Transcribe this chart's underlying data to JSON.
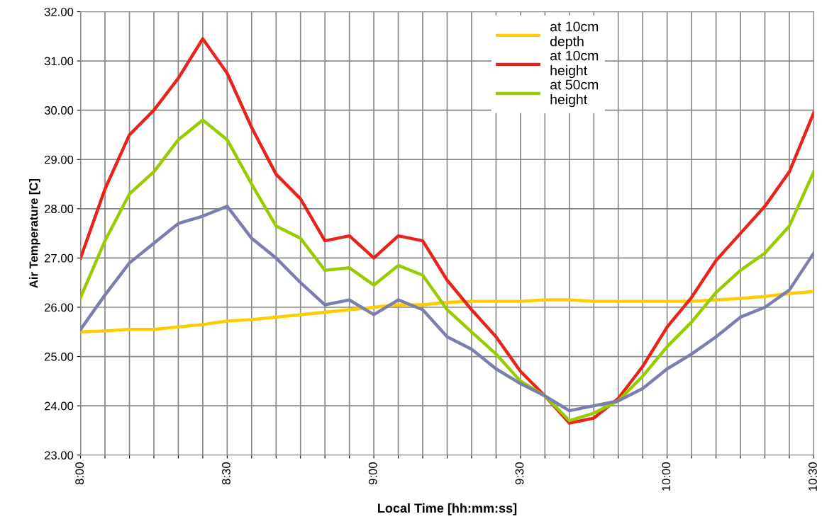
{
  "chart_data": {
    "type": "line",
    "xlabel": "Local Time [hh:mm:ss]",
    "ylabel": "Air Temperature [C]",
    "x": [
      8.0,
      8.0833,
      8.1667,
      8.25,
      8.3333,
      8.4167,
      8.5,
      8.5833,
      8.6667,
      8.75,
      8.8333,
      8.9167,
      9.0,
      9.0833,
      9.1667,
      9.25,
      9.3333,
      9.4167,
      9.5,
      9.5833,
      9.6667,
      9.75,
      9.8333,
      9.9167,
      10.0,
      10.0833,
      10.1667,
      10.25,
      10.3333,
      10.4167,
      10.5
    ],
    "series": [
      {
        "name": "at 10cm depth",
        "color": "#ffcc00",
        "values": [
          25.5,
          25.52,
          25.55,
          25.55,
          25.6,
          25.65,
          25.72,
          25.75,
          25.8,
          25.85,
          25.9,
          25.95,
          26.0,
          26.05,
          26.05,
          26.1,
          26.12,
          26.12,
          26.12,
          26.15,
          26.15,
          26.12,
          26.12,
          26.12,
          26.12,
          26.12,
          26.15,
          26.18,
          26.22,
          26.28,
          26.32
        ]
      },
      {
        "name": "at 10cm height",
        "color": "#e8231a",
        "values": [
          27.0,
          28.4,
          29.5,
          30.0,
          30.65,
          31.45,
          30.75,
          29.65,
          28.7,
          28.2,
          27.35,
          27.45,
          27.0,
          27.45,
          27.35,
          26.55,
          25.95,
          25.4,
          24.7,
          24.2,
          23.65,
          23.75,
          24.15,
          24.8,
          25.6,
          26.2,
          26.95,
          27.5,
          28.05,
          28.75,
          29.95
        ]
      },
      {
        "name": "at 50cm height",
        "color": "#99cc00",
        "values": [
          26.2,
          27.35,
          28.3,
          28.75,
          29.4,
          29.8,
          29.4,
          28.5,
          27.65,
          27.4,
          26.75,
          26.8,
          26.45,
          26.85,
          26.65,
          25.95,
          25.5,
          25.05,
          24.5,
          24.2,
          23.7,
          23.85,
          24.1,
          24.6,
          25.2,
          25.7,
          26.3,
          26.75,
          27.1,
          27.65,
          28.75
        ]
      },
      {
        "color": "#7a7fb0",
        "values": [
          25.55,
          26.25,
          26.9,
          27.3,
          27.7,
          27.85,
          28.05,
          27.4,
          27.0,
          26.5,
          26.05,
          26.15,
          25.85,
          26.15,
          25.95,
          25.4,
          25.15,
          24.75,
          24.45,
          24.2,
          23.9,
          24.0,
          24.1,
          24.35,
          24.75,
          25.05,
          25.4,
          25.8,
          26.0,
          26.35,
          27.1
        ]
      }
    ],
    "xlim": [
      8.0,
      10.5
    ],
    "xticks": [
      {
        "value": 8.0,
        "label": "8:00"
      },
      {
        "value": 8.0833,
        "label": null
      },
      {
        "value": 8.1667,
        "label": null
      },
      {
        "value": 8.25,
        "label": null
      },
      {
        "value": 8.3333,
        "label": null
      },
      {
        "value": 8.4167,
        "label": null
      },
      {
        "value": 8.5,
        "label": "8:30"
      },
      {
        "value": 8.5833,
        "label": null
      },
      {
        "value": 8.6667,
        "label": null
      },
      {
        "value": 8.75,
        "label": null
      },
      {
        "value": 8.8333,
        "label": null
      },
      {
        "value": 8.9167,
        "label": null
      },
      {
        "value": 9.0,
        "label": "9:00"
      },
      {
        "value": 9.0833,
        "label": null
      },
      {
        "value": 9.1667,
        "label": null
      },
      {
        "value": 9.25,
        "label": null
      },
      {
        "value": 9.3333,
        "label": null
      },
      {
        "value": 9.4167,
        "label": null
      },
      {
        "value": 9.5,
        "label": "9:30"
      },
      {
        "value": 9.5833,
        "label": null
      },
      {
        "value": 9.6667,
        "label": null
      },
      {
        "value": 9.75,
        "label": null
      },
      {
        "value": 9.8333,
        "label": null
      },
      {
        "value": 9.9167,
        "label": null
      },
      {
        "value": 10.0,
        "label": "10:00"
      },
      {
        "value": 10.0833,
        "label": null
      },
      {
        "value": 10.1667,
        "label": null
      },
      {
        "value": 10.25,
        "label": null
      },
      {
        "value": 10.3333,
        "label": null
      },
      {
        "value": 10.4167,
        "label": null
      },
      {
        "value": 10.5,
        "label": "10:30"
      }
    ],
    "ylim": [
      23,
      32
    ],
    "yticks": [
      {
        "value": 23,
        "label": "23.00"
      },
      {
        "value": 24,
        "label": "24.00"
      },
      {
        "value": 25,
        "label": "25.00"
      },
      {
        "value": 26,
        "label": "26.00"
      },
      {
        "value": 27,
        "label": "27.00"
      },
      {
        "value": 28,
        "label": "28.00"
      },
      {
        "value": 29,
        "label": "29.00"
      },
      {
        "value": 30,
        "label": "30.00"
      },
      {
        "value": 31,
        "label": "31.00"
      },
      {
        "value": 32,
        "label": "32.00"
      }
    ],
    "grid": true,
    "legend": "top right",
    "marker": "none",
    "line_style": "solid"
  }
}
